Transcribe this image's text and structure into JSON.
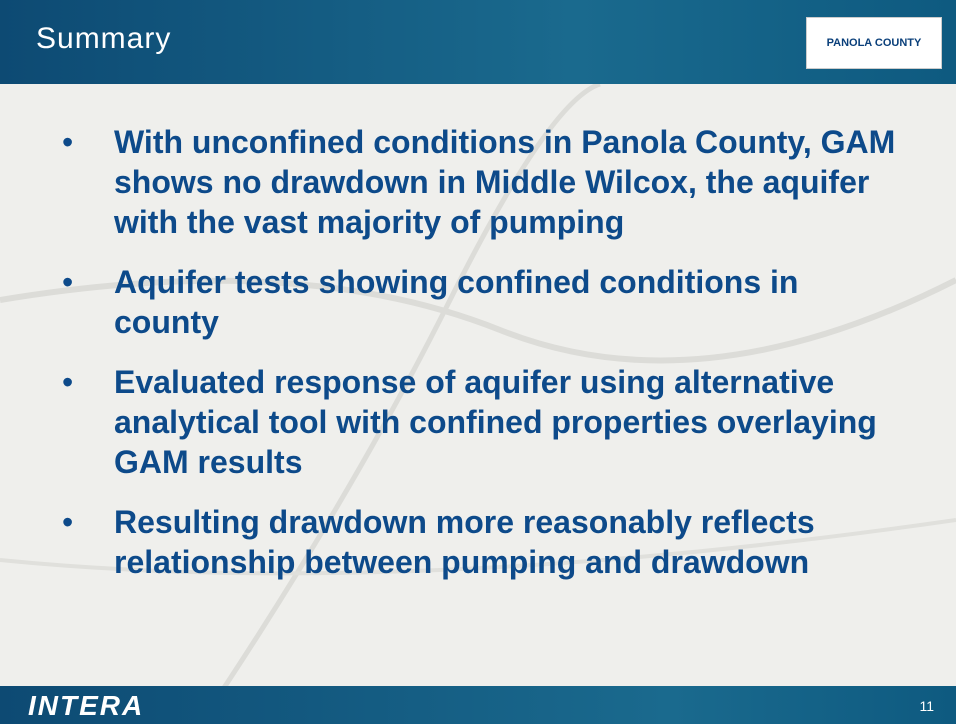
{
  "header": {
    "title": "Summary",
    "logo": "PANOLA COUNTY"
  },
  "bullets": [
    "With unconfined conditions in Panola County, GAM shows no drawdown in Middle Wilcox, the aquifer with the vast majority of pumping",
    "Aquifer tests showing confined conditions in county",
    "Evaluated response of aquifer using alternative analytical tool with confined properties overlaying GAM results",
    "Resulting drawdown more reasonably reflects relationship between pumping and drawdown"
  ],
  "footer": {
    "logo": "INTERA",
    "page": "11"
  }
}
